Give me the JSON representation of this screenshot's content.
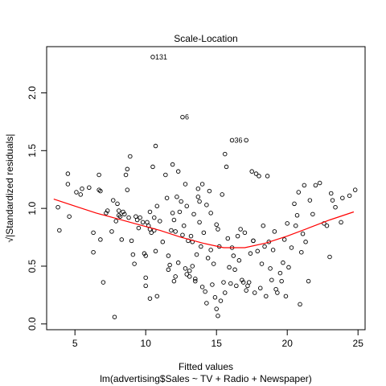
{
  "chart_data": {
    "type": "scatter",
    "title": "Scale-Location",
    "xlabel": "Fitted values",
    "subtitle": "lm(advertising$Sales ~ TV + Radio + Newspaper)",
    "ylabel": "√|Standardized residuals|",
    "xlim": [
      3,
      25.5
    ],
    "ylim": [
      -0.05,
      2.4
    ],
    "x_ticks": [
      5,
      10,
      15,
      20,
      25
    ],
    "y_ticks": [
      0.0,
      0.5,
      1.0,
      1.5,
      2.0
    ],
    "x_tick_labels": [
      "5",
      "10",
      "15",
      "20",
      "25"
    ],
    "y_tick_labels": [
      "0.0",
      "0.5",
      "1.0",
      "1.5",
      "2.0"
    ],
    "grid": false,
    "point_color": "#000000",
    "smoother_color": "#ff0000",
    "annotations": [
      {
        "label": "131",
        "x": 10.5,
        "y": 2.31
      },
      {
        "label": "6",
        "x": 12.6,
        "y": 1.79
      },
      {
        "label": "36",
        "x": 16.1,
        "y": 1.59
      }
    ],
    "points": [
      [
        10.5,
        2.31
      ],
      [
        12.6,
        1.79
      ],
      [
        16.1,
        1.59
      ],
      [
        17.1,
        1.59
      ],
      [
        3.8,
        1.01
      ],
      [
        3.9,
        0.81
      ],
      [
        4.5,
        1.3
      ],
      [
        4.5,
        1.21
      ],
      [
        4.6,
        0.93
      ],
      [
        5.1,
        1.14
      ],
      [
        5.4,
        1.12
      ],
      [
        5.5,
        1.17
      ],
      [
        6.0,
        1.18
      ],
      [
        6.3,
        0.79
      ],
      [
        6.3,
        0.62
      ],
      [
        6.7,
        1.29
      ],
      [
        6.7,
        1.16
      ],
      [
        6.8,
        1.15
      ],
      [
        6.8,
        0.73
      ],
      [
        7.0,
        0.36
      ],
      [
        7.2,
        0.96
      ],
      [
        7.3,
        0.98
      ],
      [
        7.6,
        0.8
      ],
      [
        7.7,
        1.07
      ],
      [
        7.8,
        0.06
      ],
      [
        7.9,
        0.89
      ],
      [
        8.0,
        1.04
      ],
      [
        8.1,
        0.98
      ],
      [
        8.2,
        0.93
      ],
      [
        8.3,
        0.73
      ],
      [
        8.4,
        0.97
      ],
      [
        8.5,
        0.95
      ],
      [
        8.6,
        1.29
      ],
      [
        8.7,
        1.34
      ],
      [
        8.7,
        1.16
      ],
      [
        8.8,
        0.92
      ],
      [
        8.9,
        1.45
      ],
      [
        9.0,
        0.72
      ],
      [
        9.1,
        0.6
      ],
      [
        9.2,
        0.52
      ],
      [
        9.3,
        0.93
      ],
      [
        9.4,
        0.9
      ],
      [
        9.6,
        0.92
      ],
      [
        9.8,
        0.88
      ],
      [
        9.9,
        0.61
      ],
      [
        10.0,
        0.4
      ],
      [
        10.0,
        0.33
      ],
      [
        10.0,
        0.59
      ],
      [
        10.1,
        0.88
      ],
      [
        10.2,
        0.85
      ],
      [
        10.3,
        0.82
      ],
      [
        10.3,
        0.97
      ],
      [
        10.4,
        0.79
      ],
      [
        10.5,
        1.36
      ],
      [
        10.6,
        0.92
      ],
      [
        10.6,
        0.81
      ],
      [
        10.7,
        1.54
      ],
      [
        10.7,
        0.63
      ],
      [
        10.8,
        1.02
      ],
      [
        10.3,
        0.22
      ],
      [
        10.8,
        0.24
      ],
      [
        11.0,
        0.89
      ],
      [
        11.2,
        0.71
      ],
      [
        11.4,
        1.29
      ],
      [
        11.5,
        1.09
      ],
      [
        11.6,
        0.59
      ],
      [
        11.6,
        0.47
      ],
      [
        11.7,
        0.51
      ],
      [
        11.8,
        0.81
      ],
      [
        11.9,
        1.38
      ],
      [
        12.0,
        0.37
      ],
      [
        12.0,
        0.9
      ],
      [
        12.1,
        0.8
      ],
      [
        12.1,
        0.41
      ],
      [
        12.2,
        1.1
      ],
      [
        12.3,
        0.53
      ],
      [
        12.3,
        1.32
      ],
      [
        12.4,
        0.97
      ],
      [
        12.5,
        1.06
      ],
      [
        12.6,
        0.77
      ],
      [
        12.7,
        0.85
      ],
      [
        12.8,
        0.48
      ],
      [
        12.8,
        1.21
      ],
      [
        12.9,
        0.43
      ],
      [
        13.0,
        0.72
      ],
      [
        13.1,
        0.46
      ],
      [
        13.1,
        0.41
      ],
      [
        13.2,
        0.76
      ],
      [
        13.3,
        0.71
      ],
      [
        13.3,
        0.5
      ],
      [
        13.4,
        0.95
      ],
      [
        13.5,
        0.39
      ],
      [
        13.5,
        0.37
      ],
      [
        13.6,
        0.6
      ],
      [
        13.7,
        1.1
      ],
      [
        13.8,
        1.06
      ],
      [
        13.8,
        0.88
      ],
      [
        13.9,
        0.67
      ],
      [
        14.0,
        1.21
      ],
      [
        14.0,
        0.32
      ],
      [
        14.1,
        0.79
      ],
      [
        14.2,
        0.28
      ],
      [
        14.3,
        1.03
      ],
      [
        14.3,
        0.18
      ],
      [
        14.4,
        0.57
      ],
      [
        14.5,
        1.15
      ],
      [
        14.6,
        0.64
      ],
      [
        14.7,
        0.34
      ],
      [
        14.8,
        0.52
      ],
      [
        14.9,
        0.23
      ],
      [
        15.0,
        0.86
      ],
      [
        15.0,
        0.13
      ],
      [
        15.1,
        0.82
      ],
      [
        15.1,
        0.07
      ],
      [
        15.2,
        0.67
      ],
      [
        15.3,
        0.2
      ],
      [
        15.4,
        1.12
      ],
      [
        15.5,
        0.36
      ],
      [
        15.6,
        1.47
      ],
      [
        15.6,
        0.27
      ],
      [
        15.7,
        1.36
      ],
      [
        15.8,
        0.74
      ],
      [
        15.9,
        0.49
      ],
      [
        16.0,
        0.35
      ],
      [
        16.1,
        0.66
      ],
      [
        16.2,
        0.59
      ],
      [
        16.3,
        0.47
      ],
      [
        16.4,
        0.33
      ],
      [
        16.5,
        0.76
      ],
      [
        16.6,
        0.55
      ],
      [
        16.7,
        0.82
      ],
      [
        16.8,
        0.38
      ],
      [
        16.9,
        0.36
      ],
      [
        17.0,
        0.79
      ],
      [
        17.1,
        0.29
      ],
      [
        17.2,
        0.33
      ],
      [
        17.3,
        0.36
      ],
      [
        17.4,
        0.61
      ],
      [
        17.5,
        1.32
      ],
      [
        17.6,
        0.72
      ],
      [
        17.7,
        0.27
      ],
      [
        17.8,
        1.3
      ],
      [
        17.9,
        0.63
      ],
      [
        18.0,
        1.28
      ],
      [
        18.1,
        0.31
      ],
      [
        18.2,
        0.52
      ],
      [
        18.3,
        0.85
      ],
      [
        18.4,
        0.67
      ],
      [
        18.5,
        0.24
      ],
      [
        18.6,
        1.28
      ],
      [
        18.7,
        0.71
      ],
      [
        18.8,
        0.48
      ],
      [
        18.9,
        0.38
      ],
      [
        19.0,
        0.64
      ],
      [
        19.1,
        0.8
      ],
      [
        19.2,
        0.3
      ],
      [
        19.3,
        0.27
      ],
      [
        19.5,
        0.44
      ],
      [
        19.6,
        0.37
      ],
      [
        19.7,
        0.53
      ],
      [
        19.8,
        0.73
      ],
      [
        19.9,
        0.24
      ],
      [
        20.0,
        0.87
      ],
      [
        20.1,
        0.49
      ],
      [
        20.3,
        0.66
      ],
      [
        20.5,
        1.04
      ],
      [
        20.6,
        0.85
      ],
      [
        20.7,
        0.94
      ],
      [
        20.8,
        1.14
      ],
      [
        20.9,
        0.17
      ],
      [
        21.0,
        0.62
      ],
      [
        21.1,
        0.78
      ],
      [
        21.2,
        1.2
      ],
      [
        21.3,
        0.71
      ],
      [
        21.5,
        0.37
      ],
      [
        21.6,
        1.07
      ],
      [
        21.8,
        0.95
      ],
      [
        22.0,
        1.2
      ],
      [
        22.3,
        1.22
      ],
      [
        22.6,
        0.87
      ],
      [
        22.8,
        0.85
      ],
      [
        23.0,
        0.58
      ],
      [
        23.1,
        1.13
      ],
      [
        23.2,
        1.07
      ],
      [
        23.4,
        1.01
      ],
      [
        23.8,
        0.88
      ],
      [
        23.9,
        1.09
      ],
      [
        24.4,
        1.11
      ],
      [
        24.8,
        1.16
      ],
      [
        11.9,
        0.96
      ],
      [
        12.9,
        1.02
      ],
      [
        9.5,
        0.83
      ],
      [
        14.6,
        0.96
      ],
      [
        17.6,
        0.72
      ],
      [
        8.1,
        0.94
      ],
      [
        13.7,
        1.17
      ]
    ],
    "smoother": [
      [
        3.5,
        1.08
      ],
      [
        5,
        1.02
      ],
      [
        6.5,
        0.96
      ],
      [
        8,
        0.91
      ],
      [
        9.5,
        0.86
      ],
      [
        11,
        0.81
      ],
      [
        12.5,
        0.75
      ],
      [
        14,
        0.7
      ],
      [
        15.5,
        0.66
      ],
      [
        17,
        0.66
      ],
      [
        18.5,
        0.7
      ],
      [
        20,
        0.76
      ],
      [
        21.5,
        0.83
      ],
      [
        23,
        0.9
      ],
      [
        24.7,
        0.97
      ]
    ]
  }
}
